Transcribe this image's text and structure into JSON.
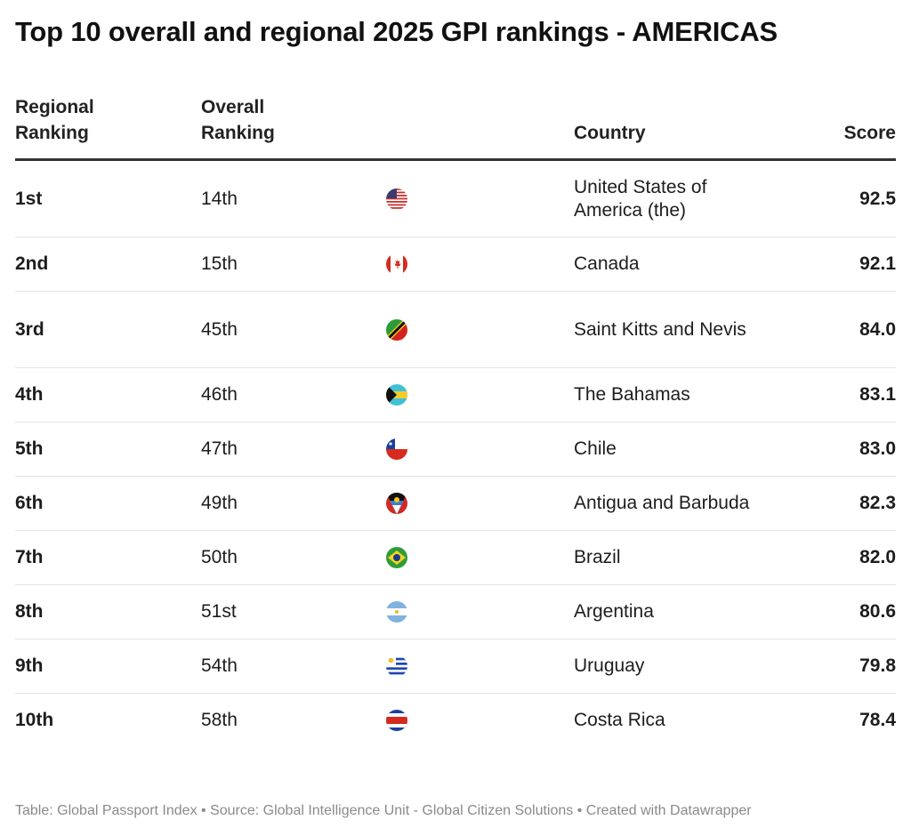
{
  "title": "Top 10 overall and regional 2025 GPI rankings - AMERICAS",
  "footer": "Table: Global Passport Index • Source: Global Intelligence Unit - Global Citizen Solutions • Created with Datawrapper",
  "chart_data": {
    "type": "table",
    "columns": [
      "Regional Ranking",
      "Overall Ranking",
      "",
      "Country",
      "Score"
    ],
    "rows": [
      {
        "regional": "1st",
        "overall": "14th",
        "flag": "us-flag",
        "country": "United States of America (the)",
        "score": "92.5"
      },
      {
        "regional": "2nd",
        "overall": "15th",
        "flag": "ca-flag",
        "country": "Canada",
        "score": "92.1"
      },
      {
        "regional": "3rd",
        "overall": "45th",
        "flag": "kn-flag",
        "country": "Saint Kitts and Nevis",
        "score": "84.0"
      },
      {
        "regional": "4th",
        "overall": "46th",
        "flag": "bs-flag",
        "country": "The Bahamas",
        "score": "83.1"
      },
      {
        "regional": "5th",
        "overall": "47th",
        "flag": "cl-flag",
        "country": "Chile",
        "score": "83.0"
      },
      {
        "regional": "6th",
        "overall": "49th",
        "flag": "ag-flag",
        "country": "Antigua and Barbuda",
        "score": "82.3"
      },
      {
        "regional": "7th",
        "overall": "50th",
        "flag": "br-flag",
        "country": "Brazil",
        "score": "82.0"
      },
      {
        "regional": "8th",
        "overall": "51st",
        "flag": "ar-flag",
        "country": "Argentina",
        "score": "80.6"
      },
      {
        "regional": "9th",
        "overall": "54th",
        "flag": "uy-flag",
        "country": "Uruguay",
        "score": "79.8"
      },
      {
        "regional": "10th",
        "overall": "58th",
        "flag": "cr-flag",
        "country": "Costa Rica",
        "score": "78.4"
      }
    ]
  }
}
